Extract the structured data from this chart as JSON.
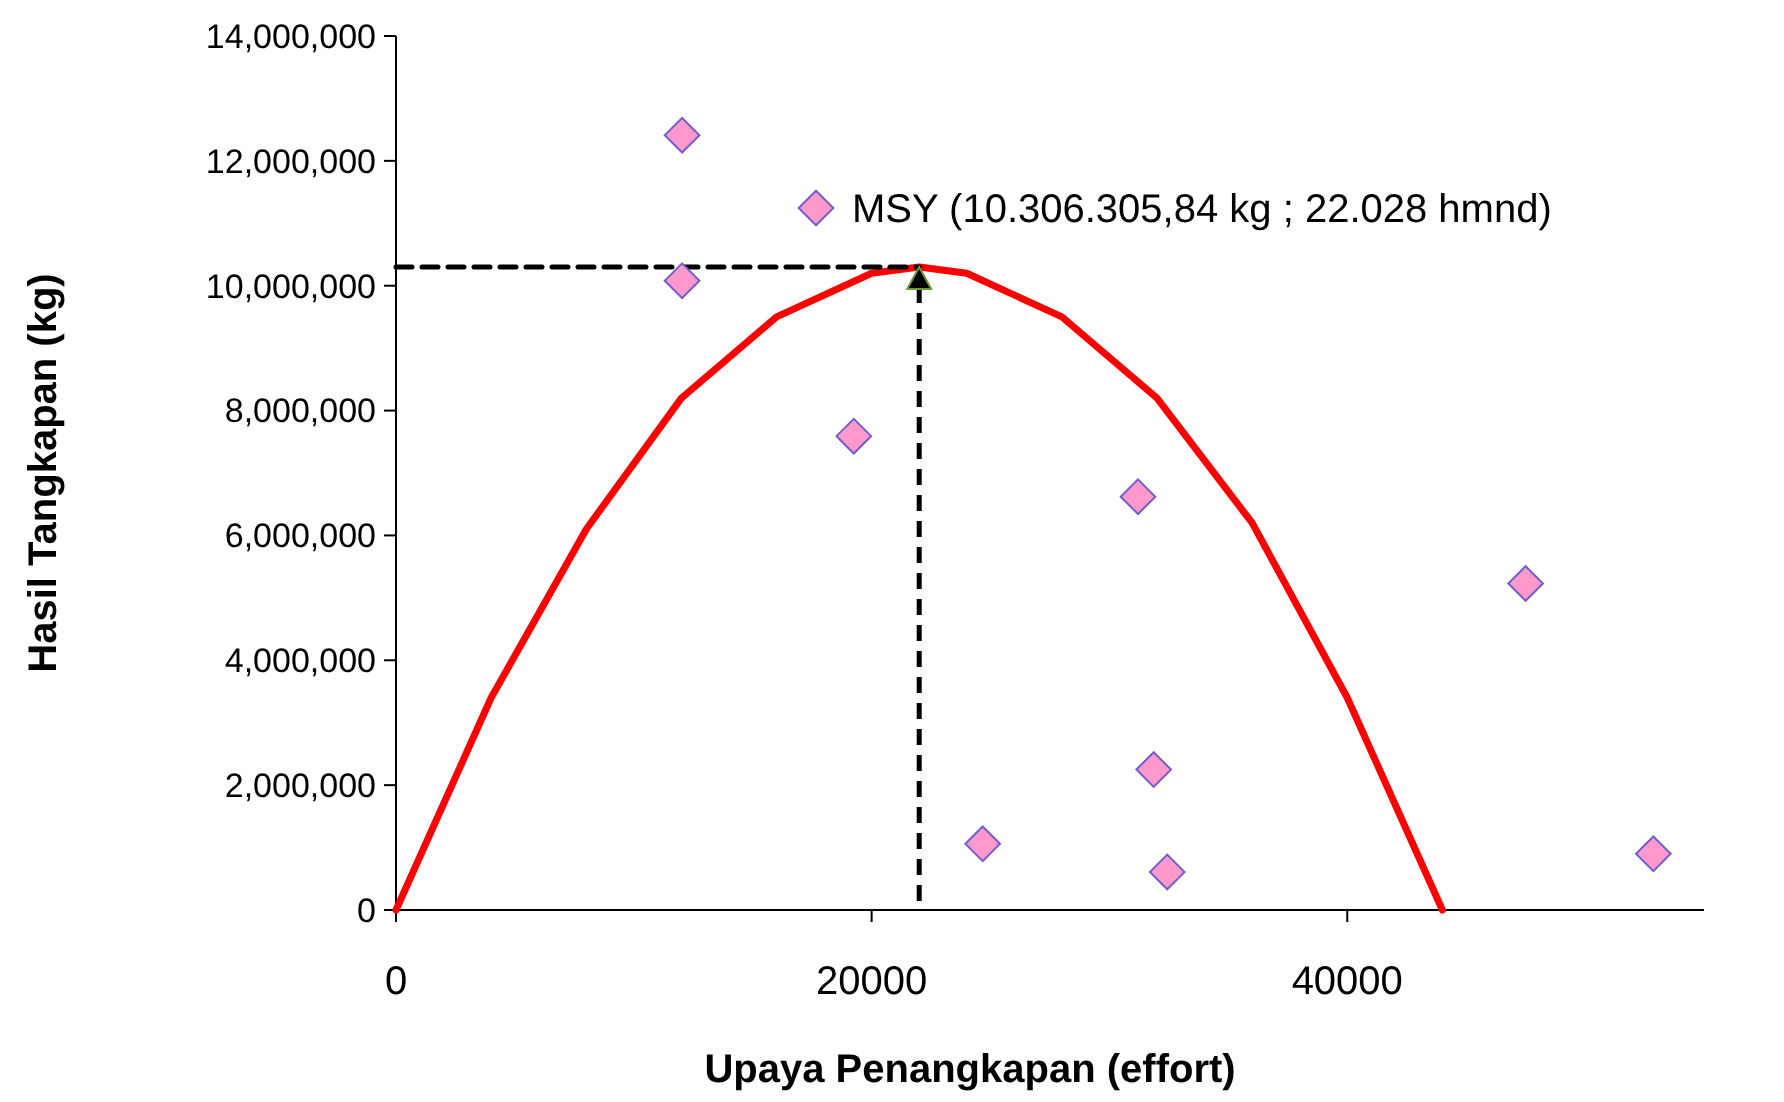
{
  "chart_data": {
    "type": "scatter",
    "xlabel": "Upaya Penangkapan (effort)",
    "ylabel": "Hasil Tangkapan (kg)",
    "xlim": [
      0,
      55000
    ],
    "xticks": [
      0,
      20000,
      40000
    ],
    "ylim": [
      0,
      14000000
    ],
    "yticks": [
      0,
      {
        "value": 2000000,
        "label": "2,000,000"
      },
      {
        "value": 4000000,
        "label": "4,000,000"
      },
      {
        "value": 6000000,
        "label": "6,000,000"
      },
      {
        "value": 8000000,
        "label": "8,000,000"
      },
      {
        "value": 10000000,
        "label": "10,000,000"
      },
      {
        "value": 12000000,
        "label": "12,000,000"
      },
      {
        "value": 14000000,
        "label": "14,000,000"
      }
    ],
    "grid": false,
    "legend": "top",
    "marker": "diamond",
    "series": [
      {
        "type": "line",
        "color": "#ff0000",
        "marker": "none",
        "line_style": "solid",
        "x": [
          0,
          4000,
          8000,
          12000,
          16000,
          20000,
          22000,
          24000,
          28000,
          32000,
          36000,
          40000,
          44000
        ],
        "values": [
          0,
          3400000,
          6100000,
          8200000,
          9500000,
          10200000,
          10300000,
          10200000,
          9500000,
          8200000,
          6200000,
          3400000,
          0
        ]
      },
      {
        "type": "line",
        "color": "#000000",
        "marker": "none",
        "line_style": "dashed",
        "x": [
          0,
          22000
        ],
        "values": [
          10300000,
          10300000
        ]
      },
      {
        "name": "MSY (10.306.305,84 kg ; 22.028 hmnd)",
        "color": "#ff99cc",
        "x": [
          12030,
          12030,
          19250,
          31200,
          47500,
          31860,
          24670,
          32430,
          52870
        ],
        "values": [
          12410000,
          10080000,
          7590000,
          6620000,
          5230000,
          2250000,
          1060000,
          610000,
          900000
        ]
      }
    ]
  }
}
